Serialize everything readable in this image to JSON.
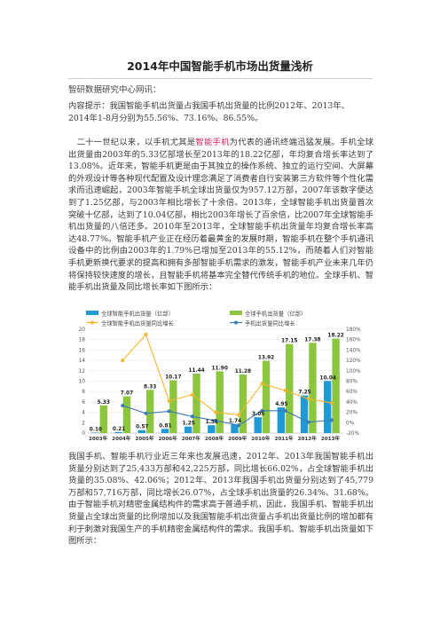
{
  "document": {
    "title": "2014年中国智能手机市场出货量浅析",
    "source": "智研数据研究中心网讯：",
    "summary_line1": "内容提示：我国智能手机出货量占我国手机出货量的比例2012年、2013年、",
    "summary_line2": "2014年1-8月分别为55.56%、73.16%、86.55%。",
    "p1_pre": "二十一世纪以来，以手机尤其是",
    "p1_highlight": "智能手机",
    "p1_post": "为代表的通讯终端迅猛发展。手机全球出货量由2003年的5.33亿部增长至2013年的18.22亿部，年均复合增长率达到了13.08%。近年来，智能手机更是由于其独立的操作系统、独立的运行空间、大屏幕的外观设计等各种现代配置及设计理念满足了消费者自行安装第三方软件等个性化需求而迅速崛起，2003年智能手机全球出货量仅为957.12万部，2007年该数字便达到了1.25亿部，与2003年相比增长了十余倍。2013年，全球智能手机出货量首次突破十亿部，达到了10.04亿部，相比2003年增长了百余倍，比2007年全球智能手机出货量的八倍还多。2010年至2013年，全球智能手机出货量年均复合增长率高达48.77%。智能手机产业正在经历着最黄金的发展时期，智能手机在整个手机通讯设备中的比例由2003年的1.79%已增加至2013年的55.12%，而随着人们对智能手机更新换代要求的提高和拥有多部智能手机需求的激发，智能手机产业未来几年仍将保持较快速度的增长，且智能手机将基本完全替代传统手机的地位。全球手机、智能手机出货量及同比增长率如下图所示：",
    "p2": "我国手机、智能手机行业近三年来也发展迅速，2012年、2013年我国智能手机出货量分别达到了25,433万部和42,225万部，同比增长66.02%，占全球智能手机出货量的35.08%、42.06%；2012年、2013年我国手机出货量分别达到了45,779万部和57,716万部，同比增长26.07%，占全球手机出货量的26.34%、31.68%。由于智能手机对精密金属结构件的需求高于普通手机，因此，我国手机、智能手机出货量占全球出货量的比例增加以及我国智能手机出货量占手机出货量比例的增加都有利于刺激对我国生产的手机精密金属结构件的需求。我国手机、智能手机出货量如下图所示："
  },
  "chart_data": {
    "type": "bar",
    "categories": [
      "2003年",
      "2004年",
      "2005年",
      "2006年",
      "2007年",
      "2008年",
      "2009年",
      "2010年",
      "2011年",
      "2012年",
      "2013年"
    ],
    "legend": [
      {
        "name": "全球智能手机出货量（亿部）",
        "color": "#1f9ad6",
        "kind": "bar"
      },
      {
        "name": "全球手机出货量（亿部）",
        "color": "#8cc63f",
        "kind": "bar"
      },
      {
        "name": "全球智能手机出货量同比增长",
        "color": "#f5b82e",
        "kind": "line"
      },
      {
        "name": "手机出货量同比增长",
        "color": "#3c7ab8",
        "kind": "line"
      }
    ],
    "series": [
      {
        "name": "全球智能手机出货量（亿部）",
        "values": [
          0.1,
          0.21,
          0.57,
          0.81,
          1.25,
          1.51,
          1.74,
          3.05,
          4.95,
          7.25,
          10.04
        ],
        "labels": [
          "0.10",
          "0.21",
          "0.57",
          "0.81",
          "1.25",
          "1.51",
          "1.74",
          "3.05",
          "4.95",
          "7.25",
          "10.04"
        ]
      },
      {
        "name": "全球手机出货量（亿部）",
        "values": [
          5.33,
          7.07,
          8.33,
          10.17,
          11.44,
          11.9,
          11.28,
          13.92,
          17.15,
          17.38,
          18.22
        ],
        "labels": [
          "5.33",
          "7.07",
          "8.33",
          "10.17",
          "11.44",
          "11.90",
          "11.28",
          "13.92",
          "17.15",
          "17.38",
          "18.22"
        ]
      },
      {
        "name": "全球智能手机出货量同比增长",
        "values": [
          null,
          120,
          170,
          42,
          54,
          20,
          15,
          75,
          62,
          46,
          38
        ]
      },
      {
        "name": "手机出货量同比增长",
        "values": [
          null,
          33,
          18,
          22,
          12,
          4,
          -5,
          23,
          23,
          1,
          5
        ]
      }
    ],
    "y_left": {
      "min": 0,
      "max": 20,
      "ticks": [
        "0",
        "2",
        "4",
        "6",
        "8",
        "10",
        "12",
        "14",
        "16",
        "18",
        "20"
      ]
    },
    "y_right": {
      "min": -20,
      "max": 180,
      "ticks": [
        "-20%",
        "0%",
        "20%",
        "40%",
        "60%",
        "80%",
        "100%",
        "120%",
        "140%",
        "160%",
        "180%"
      ]
    }
  }
}
